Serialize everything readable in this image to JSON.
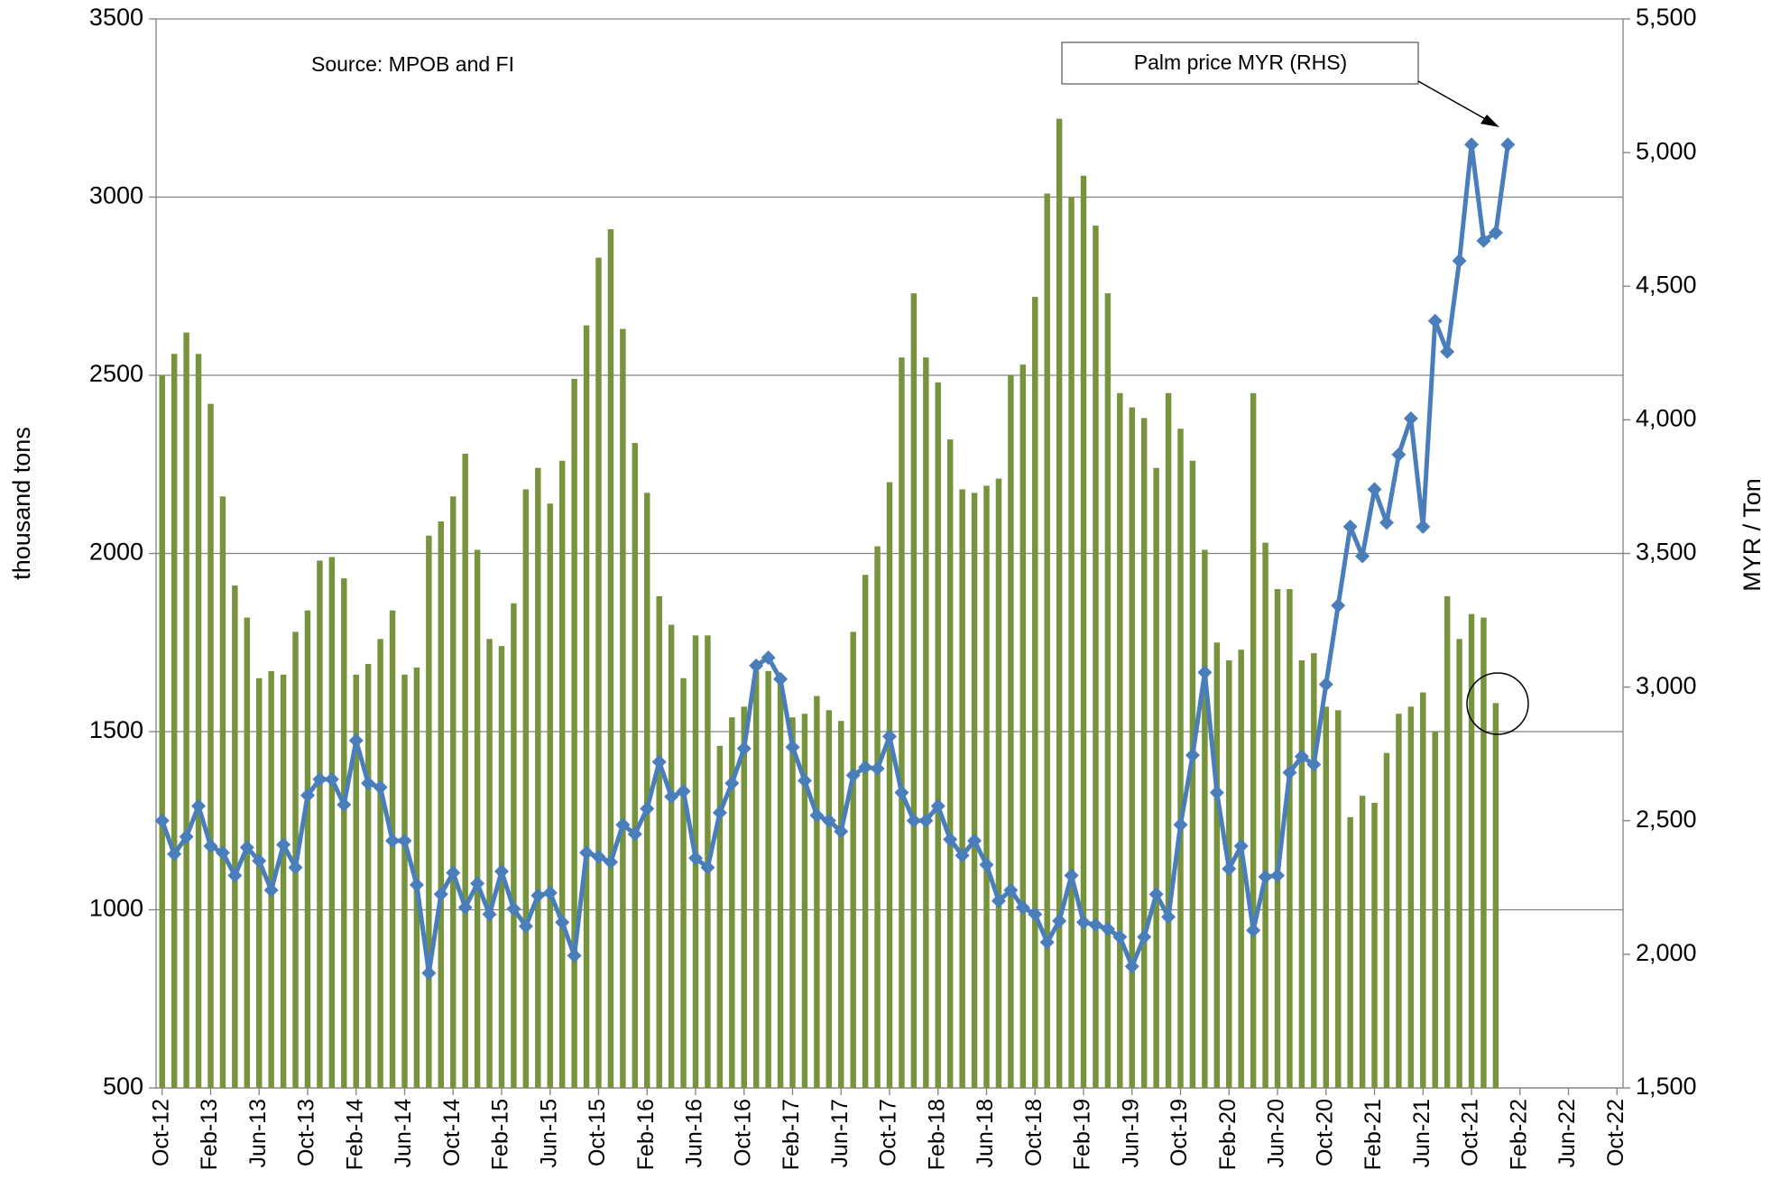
{
  "chart_data": {
    "type": "bar_line",
    "subtitle": "Source: MPOB and FI",
    "ylabel": "thousand tons",
    "y2label": "MYR / Ton",
    "categories": [
      "Oct-12",
      null,
      null,
      null,
      "Feb-13",
      null,
      null,
      null,
      "Jun-13",
      null,
      null,
      null,
      "Oct-13",
      null,
      null,
      null,
      "Feb-14",
      null,
      null,
      null,
      "Jun-14",
      null,
      null,
      null,
      "Oct-14",
      null,
      null,
      null,
      "Feb-15",
      null,
      null,
      null,
      "Jun-15",
      null,
      null,
      null,
      "Oct-15",
      null,
      null,
      null,
      "Feb-16",
      null,
      null,
      null,
      "Jun-16",
      null,
      null,
      null,
      "Oct-16",
      null,
      null,
      null,
      "Feb-17",
      null,
      null,
      null,
      "Jun-17",
      null,
      null,
      null,
      "Oct-17",
      null,
      null,
      null,
      "Feb-18",
      null,
      null,
      null,
      "Jun-18",
      null,
      null,
      null,
      "Oct-18",
      null,
      null,
      null,
      "Feb-19",
      null,
      null,
      null,
      "Jun-19",
      null,
      null,
      null,
      "Oct-19",
      null,
      null,
      null,
      "Feb-20",
      null,
      null,
      null,
      "Jun-20",
      null,
      null,
      null,
      "Oct-20",
      null,
      null,
      null,
      "Feb-21",
      null,
      null,
      null,
      "Jun-21",
      null,
      null,
      null,
      "Oct-21",
      null,
      null,
      null,
      "Feb-22",
      null,
      null,
      null,
      "Jun-22",
      null,
      null,
      null,
      "Oct-22"
    ],
    "series": [
      {
        "type": "bar",
        "color": "#77933c",
        "values": [
          2500,
          2560,
          2620,
          2560,
          2420,
          2160,
          1910,
          1820,
          1650,
          1670,
          1660,
          1780,
          1840,
          1980,
          1990,
          1930,
          1660,
          1690,
          1760,
          1840,
          1660,
          1680,
          2050,
          2090,
          2160,
          2280,
          2010,
          1760,
          1740,
          1860,
          2180,
          2240,
          2140,
          2260,
          2490,
          2640,
          2830,
          2910,
          2630,
          2310,
          2170,
          1880,
          1800,
          1650,
          1770,
          1770,
          1460,
          1540,
          1570,
          1670,
          1670,
          1660,
          1540,
          1550,
          1600,
          1560,
          1530,
          1780,
          1940,
          2020,
          2200,
          2550,
          2730,
          2550,
          2480,
          2320,
          2180,
          2170,
          2190,
          2210,
          2500,
          2530,
          2720,
          3010,
          3220,
          3000,
          3060,
          2920,
          2730,
          2450,
          2410,
          2380,
          2240,
          2450,
          2350,
          2260,
          2010,
          1750,
          1700,
          1730,
          2450,
          2030,
          1900,
          1900,
          1700,
          1720,
          1570,
          1560,
          1260,
          1320,
          1300,
          1440,
          1550,
          1570,
          1610,
          1500,
          1880,
          1760,
          1830,
          1820,
          1580,
          null,
          null,
          null,
          null,
          null,
          null,
          null,
          null,
          null,
          null
        ]
      },
      {
        "type": "line",
        "name": "Palm price MYR (RHS)",
        "axis": "y2",
        "color": "#4a7ebb",
        "values": [
          2500,
          2375,
          2440,
          2555,
          2405,
          2380,
          2295,
          2400,
          2350,
          2240,
          2410,
          2325,
          2595,
          2655,
          2655,
          2560,
          2800,
          2640,
          2625,
          2425,
          2425,
          2260,
          1930,
          2225,
          2305,
          2175,
          2265,
          2150,
          2310,
          2170,
          2105,
          2220,
          2230,
          2120,
          1995,
          2380,
          2365,
          2345,
          2485,
          2450,
          2545,
          2720,
          2590,
          2610,
          2360,
          2325,
          2530,
          2640,
          2770,
          3080,
          3110,
          3030,
          2775,
          2650,
          2520,
          2500,
          2460,
          2670,
          2700,
          2695,
          2815,
          2605,
          2500,
          2500,
          2555,
          2430,
          2370,
          2425,
          2335,
          2200,
          2240,
          2175,
          2150,
          2045,
          2125,
          2295,
          2120,
          2110,
          2095,
          2065,
          1955,
          2065,
          2225,
          2140,
          2485,
          2745,
          3055,
          2605,
          2320,
          2405,
          2090,
          2290,
          2295,
          2680,
          2740,
          2710,
          3010,
          3305,
          3600,
          3490,
          3740,
          3615,
          3870,
          4005,
          3600,
          4370,
          4255,
          4595,
          5030,
          4670,
          4700,
          5030,
          null,
          null,
          null,
          null,
          null,
          null,
          null,
          null,
          null
        ]
      }
    ],
    "ylim": [
      500,
      3500
    ],
    "yticks": [
      500,
      1000,
      1500,
      2000,
      2500,
      3000,
      3500
    ],
    "y2lim": [
      1500,
      5500
    ],
    "y2ticks": [
      {
        "value": 1500,
        "label": "1,500"
      },
      {
        "value": 2000,
        "label": "2,000"
      },
      {
        "value": 2500,
        "label": "2,500"
      },
      {
        "value": 3000,
        "label": "3,000"
      },
      {
        "value": 3500,
        "label": "3,500"
      },
      {
        "value": 4000,
        "label": "4,000"
      },
      {
        "value": 4500,
        "label": "4,500"
      },
      {
        "value": 5000,
        "label": "5,000"
      },
      {
        "value": 5500,
        "label": "5,500"
      }
    ],
    "grid": true
  }
}
